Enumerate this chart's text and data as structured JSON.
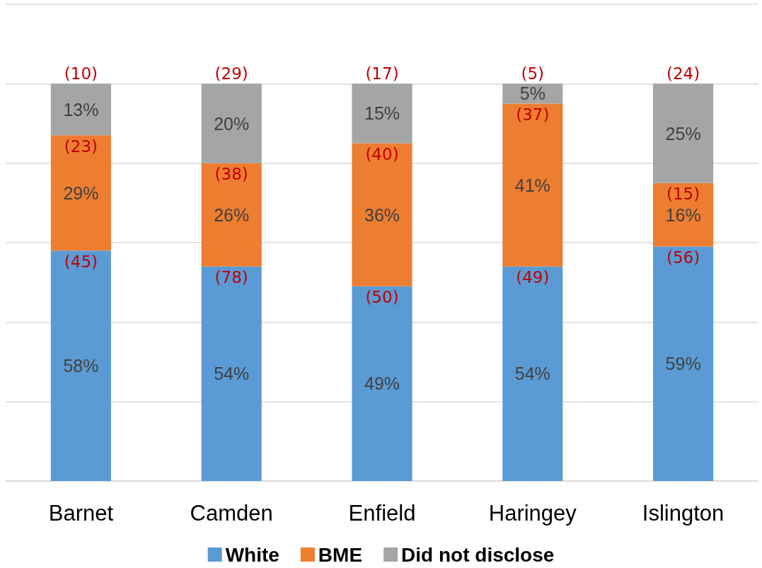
{
  "chart_data": {
    "type": "bar",
    "stacked": true,
    "categories": [
      "Barnet",
      "Camden",
      "Enfield",
      "Haringey",
      "Islington"
    ],
    "series": [
      {
        "name": "White",
        "color": "#5b9bd5",
        "values": [
          58,
          54,
          49,
          54,
          59
        ],
        "value_labels": [
          "58%",
          "54%",
          "49%",
          "54%",
          "59%"
        ]
      },
      {
        "name": "BME",
        "color": "#ed7d31",
        "values": [
          29,
          26,
          36,
          41,
          16
        ],
        "value_labels": [
          "29%",
          "26%",
          "36%",
          "41%",
          "16%"
        ]
      },
      {
        "name": "Did not disclose",
        "color": "#a5a5a5",
        "values": [
          13,
          20,
          15,
          5,
          25
        ],
        "value_labels": [
          "13%",
          "20%",
          "15%",
          "5%",
          "25%"
        ]
      }
    ],
    "ylim": [
      0,
      120
    ],
    "yticks": [
      {
        "value": 0,
        "label": null
      },
      {
        "value": 20,
        "label": null
      },
      {
        "value": 40,
        "label": null
      },
      {
        "value": 60,
        "label": null
      },
      {
        "value": 80,
        "label": null
      },
      {
        "value": 100,
        "label": null
      },
      {
        "value": 120,
        "label": null
      }
    ],
    "tick_labels": "x",
    "grid": "y",
    "legend": "bottom",
    "annotations": [
      {
        "text": "(10)",
        "x": "Barnet",
        "y": 100
      },
      {
        "text": "(23)",
        "x": "Barnet",
        "y": 87
      },
      {
        "text": "(45)",
        "x": "Barnet",
        "y": 58
      },
      {
        "text": "(29)",
        "x": "Camden",
        "y": 100
      },
      {
        "text": "(38)",
        "x": "Camden",
        "y": 80
      },
      {
        "text": "(78)",
        "x": "Camden",
        "y": 54
      },
      {
        "text": "(17)",
        "x": "Enfield",
        "y": 100
      },
      {
        "text": "(40)",
        "x": "Enfield",
        "y": 85
      },
      {
        "text": "(50)",
        "x": "Enfield",
        "y": 49
      },
      {
        "text": "(5)",
        "x": "Haringey",
        "y": 100
      },
      {
        "text": "(37)",
        "x": "Haringey",
        "y": 95
      },
      {
        "text": "(49)",
        "x": "Haringey",
        "y": 54
      },
      {
        "text": "(24)",
        "x": "Islington",
        "y": 100
      },
      {
        "text": "(15)",
        "x": "Islington",
        "y": 75
      },
      {
        "text": "(56)",
        "x": "Islington",
        "y": 59
      }
    ]
  }
}
